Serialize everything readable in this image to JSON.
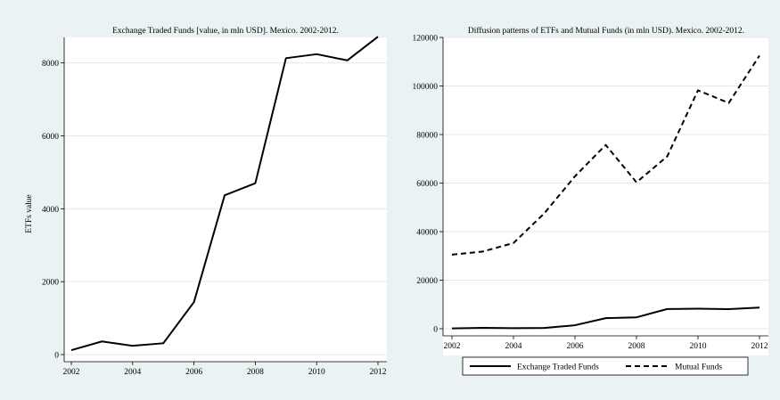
{
  "chart_data": [
    {
      "type": "line",
      "title": "Exchange Traded Funds [value, in mln USD]. Mexico. 2002-2012.",
      "xlabel": "",
      "ylabel": "ETFs value",
      "x": [
        2002,
        2003,
        2004,
        2005,
        2006,
        2007,
        2008,
        2009,
        2010,
        2011,
        2012
      ],
      "xticks": [
        2002,
        2004,
        2006,
        2008,
        2010,
        2012
      ],
      "yticks": [
        0,
        2000,
        4000,
        6000,
        8000
      ],
      "xlim": [
        2002,
        2012
      ],
      "ylim": [
        0,
        8700
      ],
      "grid": true,
      "series": [
        {
          "values": [
            120,
            360,
            240,
            310,
            1440,
            4370,
            4700,
            8130,
            8240,
            8070,
            8720
          ]
        }
      ]
    },
    {
      "type": "line",
      "title": "Diffusion patterns of ETFs and Mutual Funds (in mln USD). Mexico. 2002-2012.",
      "xlabel": "",
      "ylabel": "",
      "x": [
        2002,
        2003,
        2004,
        2005,
        2006,
        2007,
        2008,
        2009,
        2010,
        2011,
        2012
      ],
      "xticks": [
        2002,
        2004,
        2006,
        2008,
        2010,
        2012
      ],
      "yticks": [
        0,
        20000,
        40000,
        60000,
        80000,
        100000,
        120000
      ],
      "xlim": [
        2002,
        2012
      ],
      "ylim": [
        0,
        120000
      ],
      "grid": true,
      "legend": "bottom",
      "series": [
        {
          "name": "Exchange Traded Funds",
          "style": "solid",
          "values": [
            120,
            360,
            240,
            310,
            1440,
            4370,
            4700,
            8130,
            8240,
            8070,
            8720
          ]
        },
        {
          "name": "Mutual Funds",
          "style": "dashed",
          "values": [
            30500,
            31800,
            35300,
            47500,
            62800,
            75700,
            60300,
            71000,
            98200,
            93000,
            112500
          ]
        }
      ]
    }
  ],
  "colors": {
    "background": "#eaf2f3",
    "plot_area": "#ffffff",
    "grid": "#e3e9ea",
    "line": "#000000"
  }
}
